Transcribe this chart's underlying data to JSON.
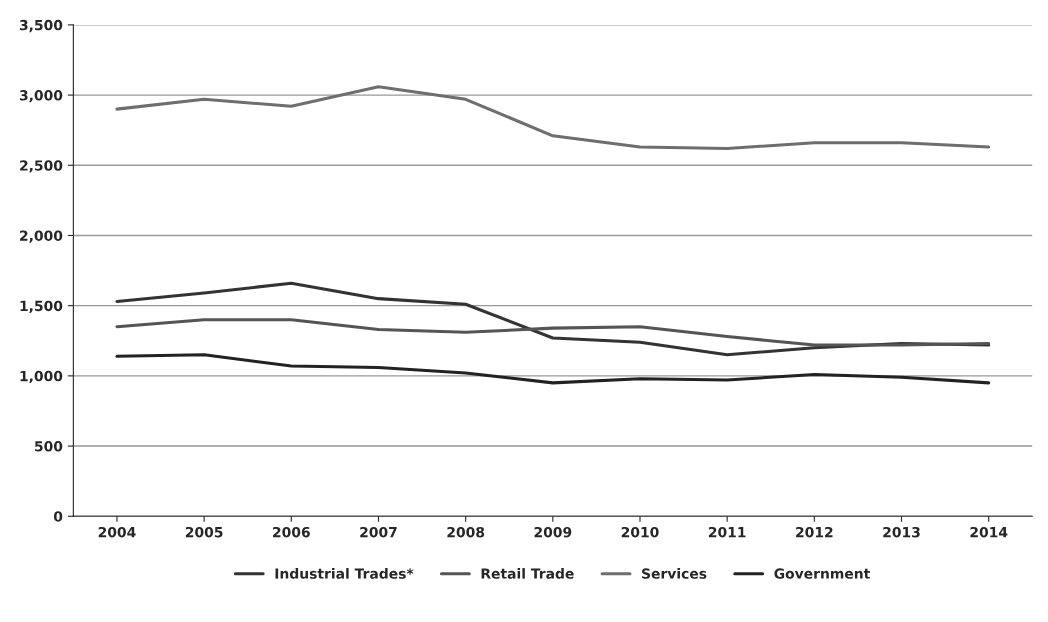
{
  "chart_data": {
    "type": "line",
    "categories": [
      "2004",
      "2005",
      "2006",
      "2007",
      "2008",
      "2009",
      "2010",
      "2011",
      "2012",
      "2013",
      "2014"
    ],
    "series": [
      {
        "name": "Industrial Trades*",
        "color": "#333333",
        "values": [
          1530,
          1590,
          1660,
          1550,
          1510,
          1270,
          1240,
          1150,
          1200,
          1230,
          1220
        ]
      },
      {
        "name": "Retail Trade",
        "color": "#555555",
        "values": [
          1350,
          1400,
          1400,
          1330,
          1310,
          1340,
          1350,
          1280,
          1220,
          1220,
          1230
        ]
      },
      {
        "name": "Services",
        "color": "#6e6e6e",
        "values": [
          2900,
          2970,
          2920,
          3060,
          2970,
          2710,
          2630,
          2620,
          2660,
          2660,
          2630
        ]
      },
      {
        "name": "Government",
        "color": "#222222",
        "values": [
          1140,
          1150,
          1070,
          1060,
          1020,
          950,
          980,
          970,
          1010,
          990,
          950
        ]
      }
    ],
    "ylim": [
      0,
      3500
    ],
    "yticks": [
      0,
      {
        "value": 500,
        "label": "500"
      },
      {
        "value": 1000,
        "label": "1,000"
      },
      {
        "value": 1500,
        "label": "1,500"
      },
      {
        "value": 2000,
        "label": "2,000"
      },
      {
        "value": 2500,
        "label": "2,500"
      },
      {
        "value": 3000,
        "label": "3,000"
      },
      {
        "value": 3500,
        "label": "3,500"
      }
    ],
    "grid": "y",
    "legend": "bottom",
    "marker": "none",
    "line_style": "solid"
  }
}
